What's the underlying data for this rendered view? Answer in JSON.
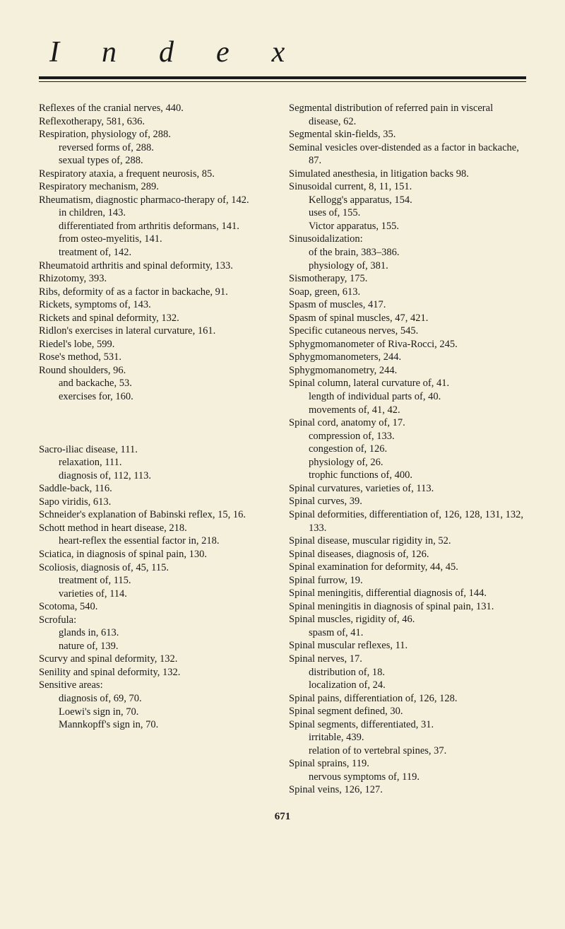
{
  "header": "Index",
  "pageNumber": "671",
  "leftColumn": [
    {
      "t": "entry",
      "v": "Reflexes of the cranial nerves, 440."
    },
    {
      "t": "entry",
      "v": "Reflexotherapy, 581, 636."
    },
    {
      "t": "entry",
      "v": "Respiration, physiology of, 288."
    },
    {
      "t": "sub",
      "v": "reversed forms of, 288."
    },
    {
      "t": "sub",
      "v": "sexual types of, 288."
    },
    {
      "t": "entry",
      "v": "Respiratory ataxia, a frequent neurosis, 85."
    },
    {
      "t": "entry",
      "v": "Respiratory mechanism, 289."
    },
    {
      "t": "entry",
      "v": "Rheumatism, diagnostic pharmaco-therapy of, 142."
    },
    {
      "t": "sub",
      "v": "in children, 143."
    },
    {
      "t": "sub",
      "v": "differentiated from arthritis deformans, 141."
    },
    {
      "t": "sub",
      "v": "from osteo-myelitis, 141."
    },
    {
      "t": "sub",
      "v": "treatment of, 142."
    },
    {
      "t": "entry",
      "v": "Rheumatoid arthritis and spinal deformity, 133."
    },
    {
      "t": "entry",
      "v": "Rhizotomy, 393."
    },
    {
      "t": "entry",
      "v": "Ribs, deformity of as a factor in backache, 91."
    },
    {
      "t": "entry",
      "v": "Rickets, symptoms of, 143."
    },
    {
      "t": "entry",
      "v": "Rickets and spinal deformity, 132."
    },
    {
      "t": "entry",
      "v": "Ridlon's exercises in lateral curvature, 161."
    },
    {
      "t": "entry",
      "v": "Riedel's lobe, 599."
    },
    {
      "t": "entry",
      "v": "Rose's method, 531."
    },
    {
      "t": "entry",
      "v": "Round shoulders, 96."
    },
    {
      "t": "sub",
      "v": "and backache, 53."
    },
    {
      "t": "sub",
      "v": "exercises for, 160."
    },
    {
      "t": "gap"
    },
    {
      "t": "gap"
    },
    {
      "t": "entry",
      "v": "Sacro-iliac disease, 111."
    },
    {
      "t": "sub",
      "v": "relaxation, 111."
    },
    {
      "t": "sub",
      "v": "diagnosis of, 112, 113."
    },
    {
      "t": "entry",
      "v": "Saddle-back, 116."
    },
    {
      "t": "entry",
      "v": "Sapo viridis, 613."
    },
    {
      "t": "entry",
      "v": "Schneider's explanation of Babinski reflex, 15, 16."
    },
    {
      "t": "entry",
      "v": "Schott method in heart disease, 218."
    },
    {
      "t": "sub",
      "v": "heart-reflex the essential factor in, 218."
    },
    {
      "t": "entry",
      "v": "Sciatica, in diagnosis of spinal pain, 130."
    },
    {
      "t": "entry",
      "v": "Scoliosis, diagnosis of, 45, 115."
    },
    {
      "t": "sub",
      "v": "treatment of, 115."
    },
    {
      "t": "sub",
      "v": "varieties of, 114."
    },
    {
      "t": "entry",
      "v": "Scotoma, 540."
    },
    {
      "t": "entry",
      "v": "Scrofula:"
    },
    {
      "t": "sub",
      "v": "glands in, 613."
    },
    {
      "t": "sub",
      "v": "nature of, 139."
    },
    {
      "t": "entry",
      "v": "Scurvy and spinal deformity, 132."
    },
    {
      "t": "entry",
      "v": "Senility and spinal deformity, 132."
    },
    {
      "t": "entry",
      "v": "Sensitive areas:"
    },
    {
      "t": "sub",
      "v": "diagnosis of, 69, 70."
    },
    {
      "t": "sub",
      "v": "Loewi's sign in, 70."
    },
    {
      "t": "sub",
      "v": "Mannkopff's sign in, 70."
    }
  ],
  "rightColumn": [
    {
      "t": "entry",
      "v": "Segmental distribution of referred pain in visceral disease, 62."
    },
    {
      "t": "entry",
      "v": "Segmental skin-fields, 35."
    },
    {
      "t": "entry",
      "v": "Seminal vesicles over-distended as a factor in backache, 87."
    },
    {
      "t": "entry",
      "v": "Simulated anesthesia, in litigation backs 98."
    },
    {
      "t": "entry",
      "v": "Sinusoidal current, 8, 11, 151."
    },
    {
      "t": "sub",
      "v": "Kellogg's apparatus, 154."
    },
    {
      "t": "sub",
      "v": "uses of, 155."
    },
    {
      "t": "sub",
      "v": "Victor apparatus, 155."
    },
    {
      "t": "entry",
      "v": "Sinusoidalization:"
    },
    {
      "t": "sub",
      "v": "of the brain, 383–386."
    },
    {
      "t": "sub",
      "v": "physiology of, 381."
    },
    {
      "t": "entry",
      "v": "Sismotherapy, 175."
    },
    {
      "t": "entry",
      "v": "Soap, green, 613."
    },
    {
      "t": "entry",
      "v": "Spasm of muscles, 417."
    },
    {
      "t": "entry",
      "v": "Spasm of spinal muscles, 47, 421."
    },
    {
      "t": "entry",
      "v": "Specific cutaneous nerves, 545."
    },
    {
      "t": "entry",
      "v": "Sphygmomanometer of Riva-Rocci, 245."
    },
    {
      "t": "entry",
      "v": "Sphygmomanometers, 244."
    },
    {
      "t": "entry",
      "v": "Sphygmomanometry, 244."
    },
    {
      "t": "entry",
      "v": "Spinal column, lateral curvature of, 41."
    },
    {
      "t": "sub",
      "v": "length of individual parts of, 40."
    },
    {
      "t": "sub",
      "v": "movements of, 41, 42."
    },
    {
      "t": "entry",
      "v": "Spinal cord, anatomy of, 17."
    },
    {
      "t": "sub",
      "v": "compression of, 133."
    },
    {
      "t": "sub",
      "v": "congestion of, 126."
    },
    {
      "t": "sub",
      "v": "physiology of, 26."
    },
    {
      "t": "sub",
      "v": "trophic functions of, 400."
    },
    {
      "t": "entry",
      "v": "Spinal curvatures, varieties of, 113."
    },
    {
      "t": "entry",
      "v": "Spinal curves, 39."
    },
    {
      "t": "entry",
      "v": "Spinal deformities, differentiation of, 126, 128, 131, 132, 133."
    },
    {
      "t": "entry",
      "v": "Spinal disease, muscular rigidity in, 52."
    },
    {
      "t": "entry",
      "v": "Spinal diseases, diagnosis of, 126."
    },
    {
      "t": "entry",
      "v": "Spinal examination for deformity, 44, 45."
    },
    {
      "t": "entry",
      "v": "Spinal furrow, 19."
    },
    {
      "t": "entry",
      "v": "Spinal meningitis, differential diagnosis of, 144."
    },
    {
      "t": "entry",
      "v": "Spinal meningitis in diagnosis of spinal pain, 131."
    },
    {
      "t": "entry",
      "v": "Spinal muscles, rigidity of, 46."
    },
    {
      "t": "sub",
      "v": "spasm of, 41."
    },
    {
      "t": "entry",
      "v": "Spinal muscular reflexes, 11."
    },
    {
      "t": "entry",
      "v": "Spinal nerves, 17."
    },
    {
      "t": "sub",
      "v": "distribution of, 18."
    },
    {
      "t": "sub",
      "v": "localization of, 24."
    },
    {
      "t": "entry",
      "v": "Spinal pains, differentiation of, 126, 128."
    },
    {
      "t": "entry",
      "v": "Spinal segment defined, 30."
    },
    {
      "t": "entry",
      "v": "Spinal segments, differentiated, 31."
    },
    {
      "t": "sub",
      "v": "irritable, 439."
    },
    {
      "t": "sub",
      "v": "relation of to vertebral spines, 37."
    },
    {
      "t": "entry",
      "v": "Spinal sprains, 119."
    },
    {
      "t": "sub",
      "v": "nervous symptoms of, 119."
    },
    {
      "t": "entry",
      "v": "Spinal veins, 126, 127."
    }
  ]
}
